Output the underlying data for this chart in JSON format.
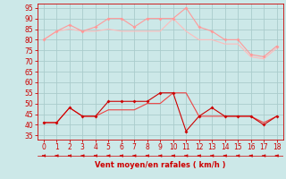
{
  "x": [
    0,
    1,
    2,
    3,
    4,
    5,
    6,
    7,
    8,
    9,
    10,
    11,
    12,
    13,
    14,
    15,
    16,
    17,
    18
  ],
  "line1": [
    80,
    84,
    87,
    84,
    86,
    90,
    90,
    86,
    90,
    90,
    90,
    95,
    86,
    84,
    80,
    80,
    73,
    72,
    77
  ],
  "line2": [
    80,
    84,
    85,
    84,
    84,
    85,
    84,
    84,
    84,
    84,
    90,
    84,
    80,
    80,
    78,
    78,
    72,
    71,
    76
  ],
  "line3": [
    41,
    41,
    48,
    44,
    44,
    51,
    51,
    51,
    51,
    55,
    55,
    37,
    44,
    48,
    44,
    44,
    44,
    40,
    44
  ],
  "line4": [
    41,
    41,
    48,
    44,
    44,
    47,
    47,
    47,
    50,
    50,
    55,
    55,
    44,
    44,
    44,
    44,
    44,
    41,
    44
  ],
  "color_line1": "#ff9999",
  "color_line2": "#ffbbbb",
  "color_line3": "#cc0000",
  "color_line4": "#ee4444",
  "color_arrows": "#cc0000",
  "xlabel": "Vent moyen/en rafales ( km/h )",
  "xlabel_color": "#cc0000",
  "bg_color": "#cce8e8",
  "grid_color": "#aacccc",
  "axis_color": "#cc0000",
  "tick_color": "#cc0000",
  "ylim": [
    33,
    97
  ],
  "xlim": [
    -0.5,
    18.5
  ],
  "yticks": [
    35,
    40,
    45,
    50,
    55,
    60,
    65,
    70,
    75,
    80,
    85,
    90,
    95
  ],
  "xticks": [
    0,
    1,
    2,
    3,
    4,
    5,
    6,
    7,
    8,
    9,
    10,
    11,
    12,
    13,
    14,
    15,
    16,
    17,
    18
  ]
}
